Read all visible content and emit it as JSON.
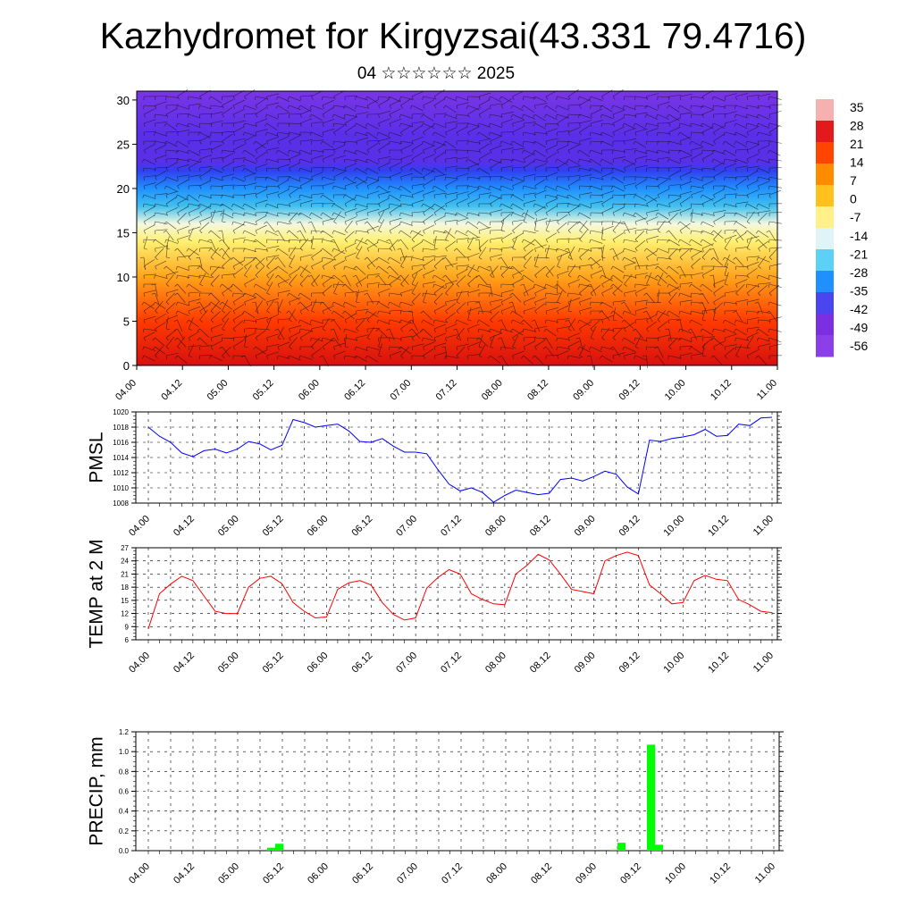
{
  "title": "Kazhydromet for Kirgyzsai(43.331 79.4716)",
  "subtitle": "04 ☆☆☆☆☆☆ 2025",
  "time_labels": [
    "04.00",
    "04.12",
    "05.00",
    "05.12",
    "06.00",
    "06.12",
    "07.00",
    "07.12",
    "08.00",
    "08.12",
    "09.00",
    "09.12",
    "10.00",
    "10.12",
    "11.00"
  ],
  "chart_data": [
    {
      "id": "cross_section",
      "type": "heatmap",
      "title": "",
      "xlabel": "",
      "ylabel": "",
      "x_ticks": [
        "04.00",
        "04.12",
        "05.00",
        "05.12",
        "06.00",
        "06.12",
        "07.00",
        "07.12",
        "08.00",
        "08.12",
        "09.00",
        "09.12",
        "10.00",
        "10.12",
        "11.00"
      ],
      "y_ticks": [
        0,
        5,
        10,
        15,
        20,
        25,
        30
      ],
      "ylim": [
        0,
        31
      ],
      "overlay": "wind barbs",
      "colorbar": {
        "labels": [
          "35",
          "28",
          "21",
          "14",
          "7",
          "0",
          "-7",
          "-14",
          "-21",
          "-28",
          "-35",
          "-42",
          "-49",
          "-56"
        ],
        "range": [
          -60,
          38
        ],
        "colors_top_to_bottom": [
          "#f5b0b0",
          "#e31a1c",
          "#ff4500",
          "#ff8c00",
          "#ffc020",
          "#fff08a",
          "#e0f4f8",
          "#5cd0f5",
          "#1e90ff",
          "#4a45ee",
          "#7a2fe0",
          "#8a3fe8"
        ]
      },
      "temperature_profile_by_height": [
        {
          "h": 0,
          "t": 25
        },
        {
          "h": 5,
          "t": 18
        },
        {
          "h": 10,
          "t": 5
        },
        {
          "h": 14,
          "t": -8
        },
        {
          "h": 16,
          "t": -14
        },
        {
          "h": 18,
          "t": -25
        },
        {
          "h": 20,
          "t": -35
        },
        {
          "h": 22,
          "t": -45
        },
        {
          "h": 23,
          "t": -55
        },
        {
          "h": 26,
          "t": -52
        },
        {
          "h": 31,
          "t": -58
        }
      ]
    },
    {
      "id": "pmsl",
      "type": "line",
      "ylabel": "PMSL",
      "ylim": [
        1008,
        1020
      ],
      "y_ticks": [
        1008,
        1010,
        1012,
        1014,
        1016,
        1018,
        1020
      ],
      "series": [
        {
          "color": "#0000ff",
          "values": [
            1018,
            1016.8,
            1016,
            1014.6,
            1014.1,
            1014.9,
            1015.1,
            1014.6,
            1015.1,
            1016.1,
            1015.8,
            1015,
            1015.6,
            1019,
            1018.6,
            1018,
            1018.2,
            1018.4,
            1017.5,
            1016.1,
            1016,
            1016.5,
            1015.5,
            1014.7,
            1014.7,
            1014.5,
            1012.4,
            1010.5,
            1009.6,
            1010,
            1009.4,
            1008.1,
            1009,
            1009.7,
            1009.4,
            1009.1,
            1009.3,
            1011.1,
            1011.3,
            1010.9,
            1011.5,
            1012.2,
            1011.8,
            1010.1,
            1009.2,
            1016.3,
            1016.1,
            1016.5,
            1016.7,
            1017,
            1017.7,
            1016.8,
            1016.9,
            1018.4,
            1018.2,
            1019.2,
            1019.3
          ]
        }
      ]
    },
    {
      "id": "temp2m",
      "type": "line",
      "ylabel": "TEMP at 2 M",
      "ylim": [
        6,
        27
      ],
      "y_ticks": [
        6,
        9,
        12,
        15,
        18,
        21,
        24,
        27
      ],
      "series": [
        {
          "color": "#ff0000",
          "values": [
            8.5,
            16.5,
            18.7,
            20.5,
            19.5,
            16,
            12.5,
            12,
            12,
            18,
            20,
            20.5,
            18.8,
            14.5,
            12.5,
            11,
            11.2,
            17.5,
            19,
            19.5,
            18.5,
            14.5,
            11.8,
            10.5,
            11,
            17.8,
            20.2,
            22,
            21,
            16.5,
            15.2,
            14.2,
            14,
            21,
            23,
            25.5,
            24.2,
            21,
            17.5,
            17,
            16.5,
            24,
            25.2,
            26,
            25.2,
            18.5,
            16.5,
            14.2,
            14.5,
            19.5,
            20.7,
            19.8,
            19.5,
            15.2,
            14,
            12.5,
            12.2
          ]
        }
      ]
    },
    {
      "id": "precip",
      "type": "bar",
      "ylabel": "PRECIP, mm",
      "ylim": [
        0,
        1.2
      ],
      "y_ticks": [
        0.0,
        0.2,
        0.4,
        0.6,
        0.8,
        1.0,
        1.2
      ],
      "color": "#00ff00",
      "bars": [
        {
          "x": 1.33,
          "value": 0.03
        },
        {
          "x": 1.42,
          "value": 0.07
        },
        {
          "x": 5.17,
          "value": 0.01
        },
        {
          "x": 5.25,
          "value": 0.08
        },
        {
          "x": 5.58,
          "value": 1.07
        },
        {
          "x": 5.67,
          "value": 0.06
        }
      ]
    }
  ]
}
